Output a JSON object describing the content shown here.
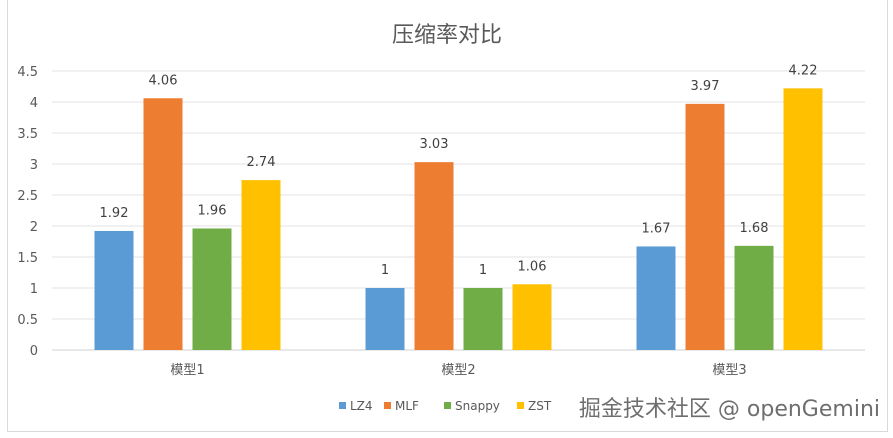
{
  "chart_data": {
    "type": "bar",
    "title": "压缩率对比",
    "categories": [
      "模型1",
      "模型2",
      "模型3"
    ],
    "series": [
      {
        "name": "LZ4",
        "values": [
          1.92,
          1,
          1.67
        ],
        "color": "#5b9bd5"
      },
      {
        "name": "MLF",
        "values": [
          4.06,
          3.03,
          3.97
        ],
        "color": "#ed7d31"
      },
      {
        "name": "Snappy",
        "values": [
          1.96,
          1,
          1.68
        ],
        "color": "#70ad47"
      },
      {
        "name": "ZST",
        "values": [
          2.74,
          1.06,
          4.22
        ],
        "color": "#ffc000"
      }
    ],
    "ylim": [
      0,
      4.5
    ],
    "yticks": [
      "0",
      "0.5",
      "1",
      "1.5",
      "2",
      "2.5",
      "3",
      "3.5",
      "4",
      "4.5"
    ],
    "grid": true,
    "legend": "bottom",
    "xlabel": "",
    "ylabel": ""
  },
  "watermark": "掘金技术社区 @ openGemini"
}
